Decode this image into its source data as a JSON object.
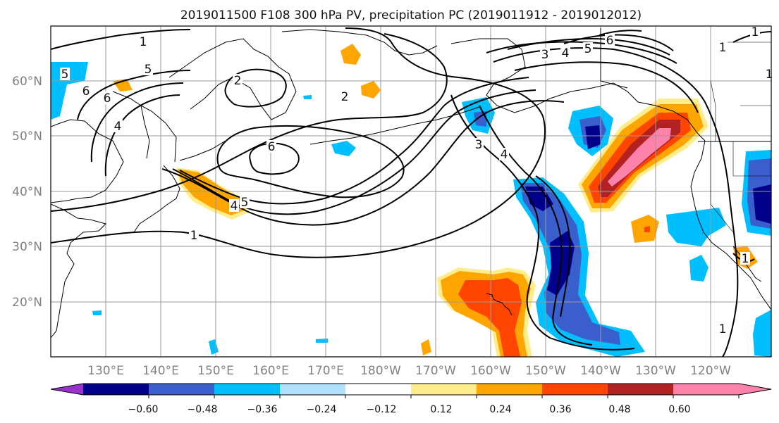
{
  "title": "2019011500 F108 300 hPa PV, precipitation PC (2019011912 - 2019012012)",
  "lat_labels": [
    "60°N",
    "50°N",
    "40°N",
    "30°N",
    "20°N"
  ],
  "lon_labels": [
    "130°E",
    "140°E",
    "150°E",
    "160°E",
    "170°E",
    "180°W",
    "170°W",
    "160°W",
    "150°W",
    "140°W",
    "130°W",
    "120°W"
  ],
  "contour_labels": [
    "1",
    "5",
    "6",
    "6",
    "4",
    "2",
    "6",
    "2",
    "3",
    "4",
    "5",
    "6",
    "1",
    "4",
    "5",
    "3",
    "4",
    "1",
    "1",
    "1",
    "5",
    "1",
    "1"
  ],
  "colorbar": {
    "colors": [
      "#9932cc",
      "#00008b",
      "#3a5fcd",
      "#00bfff",
      "#b0e2ff",
      "#ffffff",
      "#ffec8b",
      "#ffa500",
      "#ff4500",
      "#b22222",
      "#ff82ab",
      "#ff82ab"
    ],
    "tick_labels": [
      "−0.60",
      "−0.48",
      "−0.36",
      "−0.24",
      "−0.12",
      "0.12",
      "0.24",
      "0.36",
      "0.48",
      "0.60"
    ],
    "tick_values": [
      -0.6,
      -0.48,
      -0.36,
      -0.24,
      -0.12,
      0.12,
      0.24,
      0.36,
      0.48,
      0.6
    ]
  }
}
